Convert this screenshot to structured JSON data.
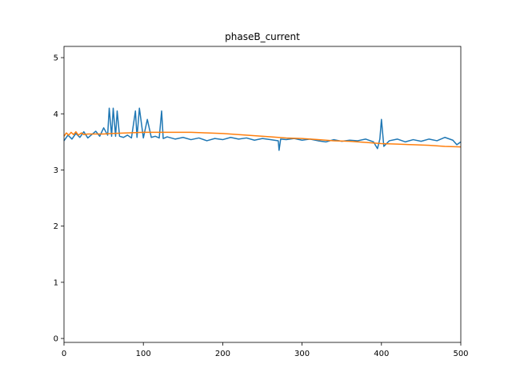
{
  "chart_data": {
    "type": "line",
    "title": "phaseB_current",
    "xlabel": "",
    "ylabel": "",
    "xlim": [
      0,
      500
    ],
    "ylim": [
      -0.07,
      5.2
    ],
    "xticks": [
      0,
      100,
      200,
      300,
      400,
      500
    ],
    "yticks": [
      0,
      1,
      2,
      3,
      4,
      5
    ],
    "grid": false,
    "legend": "none",
    "series": [
      {
        "color": "#1f77b4",
        "x": [
          0,
          5,
          10,
          15,
          20,
          25,
          30,
          35,
          40,
          45,
          50,
          55,
          57,
          60,
          62,
          65,
          67,
          70,
          75,
          80,
          85,
          90,
          92,
          95,
          100,
          105,
          110,
          115,
          120,
          123,
          125,
          130,
          140,
          150,
          160,
          170,
          180,
          190,
          200,
          210,
          220,
          230,
          240,
          250,
          260,
          270,
          271,
          273,
          280,
          290,
          300,
          310,
          320,
          330,
          340,
          350,
          360,
          370,
          380,
          390,
          395,
          398,
          400,
          403,
          410,
          420,
          430,
          440,
          450,
          460,
          470,
          480,
          490,
          495,
          500
        ],
        "y": [
          3.52,
          3.62,
          3.55,
          3.65,
          3.58,
          3.68,
          3.57,
          3.63,
          3.69,
          3.6,
          3.75,
          3.62,
          4.1,
          3.6,
          4.1,
          3.6,
          4.05,
          3.6,
          3.58,
          3.62,
          3.57,
          4.05,
          3.58,
          4.1,
          3.57,
          3.9,
          3.58,
          3.6,
          3.57,
          4.05,
          3.56,
          3.59,
          3.55,
          3.58,
          3.54,
          3.57,
          3.52,
          3.56,
          3.54,
          3.58,
          3.55,
          3.57,
          3.53,
          3.56,
          3.54,
          3.52,
          3.35,
          3.55,
          3.54,
          3.56,
          3.53,
          3.55,
          3.52,
          3.5,
          3.54,
          3.51,
          3.53,
          3.52,
          3.55,
          3.5,
          3.38,
          3.55,
          3.9,
          3.42,
          3.52,
          3.55,
          3.5,
          3.54,
          3.51,
          3.55,
          3.52,
          3.58,
          3.53,
          3.45,
          3.5
        ]
      },
      {
        "color": "#ff7f0e",
        "x": [
          0,
          3,
          6,
          9,
          12,
          15,
          18,
          22,
          25,
          30,
          40,
          50,
          60,
          80,
          100,
          120,
          140,
          160,
          180,
          200,
          220,
          240,
          260,
          280,
          300,
          320,
          340,
          360,
          380,
          400,
          420,
          440,
          460,
          480,
          500
        ],
        "y": [
          3.6,
          3.66,
          3.62,
          3.67,
          3.63,
          3.68,
          3.62,
          3.66,
          3.63,
          3.64,
          3.64,
          3.64,
          3.65,
          3.66,
          3.67,
          3.67,
          3.67,
          3.67,
          3.66,
          3.65,
          3.63,
          3.61,
          3.59,
          3.57,
          3.56,
          3.54,
          3.52,
          3.51,
          3.49,
          3.47,
          3.46,
          3.45,
          3.44,
          3.42,
          3.41
        ]
      }
    ]
  }
}
